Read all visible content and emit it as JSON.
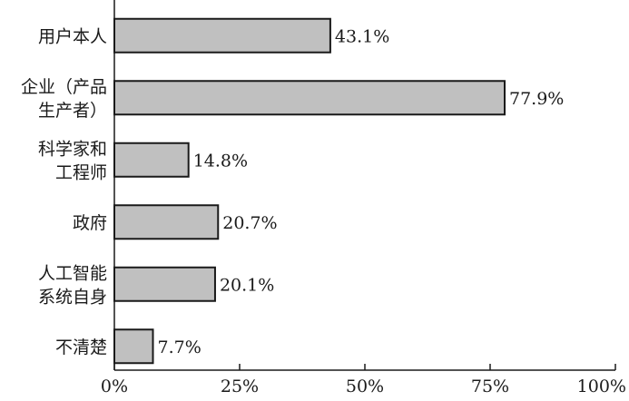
{
  "chart_data": {
    "type": "bar",
    "orientation": "horizontal",
    "title": "",
    "xlabel": "",
    "ylabel": "",
    "categories": [
      [
        "用户本人"
      ],
      [
        "企业（产品",
        "生产者）"
      ],
      [
        "科学家和",
        "工程师"
      ],
      [
        "政府"
      ],
      [
        "人工智能",
        "系统自身"
      ],
      [
        "不清楚"
      ]
    ],
    "values": [
      43.1,
      77.9,
      14.8,
      20.7,
      20.1,
      7.7
    ],
    "value_labels": [
      "43.1%",
      "77.9%",
      "14.8%",
      "20.7%",
      "20.1%",
      "7.7%"
    ],
    "xlim": [
      0,
      100
    ],
    "x_ticks": [
      0,
      25,
      50,
      75,
      100
    ],
    "x_tick_labels": [
      "0%",
      "25%",
      "50%",
      "75%",
      "100%"
    ],
    "grid": false,
    "legend": "none",
    "colors": {
      "bar_fill": "#c0c0c0",
      "bar_stroke": "#1a1a1a",
      "axis": "#1a1a1a"
    }
  }
}
